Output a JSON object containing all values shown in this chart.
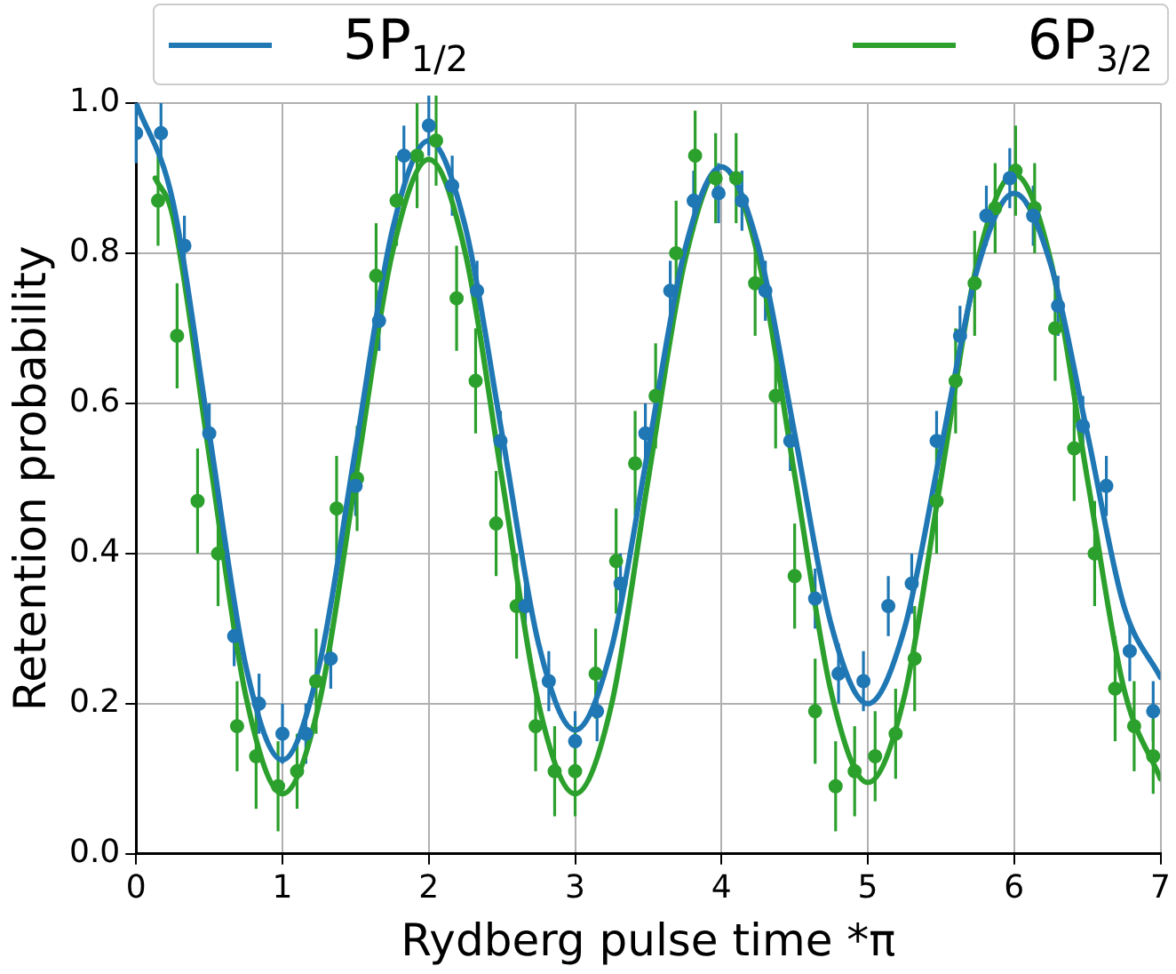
{
  "chart_data": {
    "type": "scatter",
    "xlabel": "Rydberg pulse time *π",
    "ylabel": "Retention probability",
    "xlim": [
      0,
      7
    ],
    "xticks": [
      0,
      1,
      2,
      3,
      4,
      5,
      6,
      7
    ],
    "ylim": [
      0,
      1
    ],
    "yticks": [
      {
        "value": 0,
        "label": "0.0"
      },
      0.2,
      0.4,
      0.6,
      0.8,
      {
        "value": 1,
        "label": "1.0"
      }
    ],
    "grid": true,
    "legend": "top",
    "series": [
      {
        "marker": "circle",
        "color": "#1f77b4",
        "x": [
          0,
          0.17,
          0.33,
          0.5,
          0.67,
          0.84,
          1.0,
          1.16,
          1.33,
          1.5,
          1.66,
          1.83,
          2.0,
          2.16,
          2.33,
          2.49,
          2.66,
          2.82,
          3.0,
          3.15,
          3.31,
          3.48,
          3.65,
          3.81,
          3.98,
          4.14,
          4.3,
          4.47,
          4.64,
          4.8,
          4.97,
          5.14,
          5.3,
          5.47,
          5.63,
          5.81,
          5.97,
          6.13,
          6.3,
          6.47,
          6.63,
          6.79,
          6.95
        ],
        "values": [
          0.96,
          0.96,
          0.81,
          0.56,
          0.29,
          0.2,
          0.16,
          0.16,
          0.26,
          0.49,
          0.71,
          0.93,
          0.97,
          0.89,
          0.75,
          0.55,
          0.33,
          0.23,
          0.15,
          0.19,
          0.36,
          0.56,
          0.75,
          0.87,
          0.88,
          0.87,
          0.75,
          0.55,
          0.34,
          0.24,
          0.23,
          0.33,
          0.36,
          0.55,
          0.69,
          0.85,
          0.9,
          0.85,
          0.73,
          0.57,
          0.49,
          0.27,
          0.19
        ],
        "errors": [
          0.04,
          0.04,
          0.04,
          0.04,
          0.04,
          0.04,
          0.04,
          0.04,
          0.04,
          0.04,
          0.04,
          0.04,
          0.04,
          0.04,
          0.04,
          0.04,
          0.04,
          0.04,
          0.04,
          0.04,
          0.04,
          0.04,
          0.04,
          0.04,
          0.04,
          0.04,
          0.04,
          0.04,
          0.04,
          0.04,
          0.04,
          0.04,
          0.04,
          0.04,
          0.04,
          0.04,
          0.04,
          0.04,
          0.04,
          0.04,
          0.04,
          0.04,
          0.04
        ]
      },
      {
        "marker": "circle",
        "color": "#2ca02c",
        "x": [
          0.15,
          0.28,
          0.42,
          0.56,
          0.69,
          0.82,
          0.97,
          1.1,
          1.23,
          1.37,
          1.51,
          1.64,
          1.78,
          1.92,
          2.05,
          2.19,
          2.32,
          2.46,
          2.6,
          2.73,
          2.86,
          3.0,
          3.14,
          3.28,
          3.41,
          3.55,
          3.69,
          3.82,
          3.96,
          4.1,
          4.23,
          4.37,
          4.5,
          4.64,
          4.78,
          4.91,
          5.05,
          5.19,
          5.32,
          5.47,
          5.6,
          5.73,
          5.87,
          6.01,
          6.14,
          6.28,
          6.41,
          6.55,
          6.69,
          6.82,
          6.95
        ],
        "values": [
          0.87,
          0.69,
          0.47,
          0.4,
          0.17,
          0.13,
          0.09,
          0.11,
          0.23,
          0.46,
          0.5,
          0.77,
          0.87,
          0.93,
          0.95,
          0.74,
          0.63,
          0.44,
          0.33,
          0.17,
          0.11,
          0.11,
          0.24,
          0.39,
          0.52,
          0.61,
          0.8,
          0.93,
          0.9,
          0.9,
          0.76,
          0.61,
          0.37,
          0.19,
          0.09,
          0.11,
          0.13,
          0.16,
          0.26,
          0.47,
          0.63,
          0.76,
          0.86,
          0.91,
          0.86,
          0.7,
          0.54,
          0.4,
          0.22,
          0.17,
          0.13
        ],
        "errors": [
          0.06,
          0.07,
          0.07,
          0.07,
          0.06,
          0.07,
          0.06,
          0.05,
          0.07,
          0.07,
          0.07,
          0.07,
          0.06,
          0.07,
          0.06,
          0.07,
          0.07,
          0.07,
          0.07,
          0.06,
          0.06,
          0.06,
          0.06,
          0.07,
          0.07,
          0.07,
          0.07,
          0.06,
          0.06,
          0.06,
          0.07,
          0.07,
          0.07,
          0.07,
          0.06,
          0.06,
          0.06,
          0.06,
          0.07,
          0.07,
          0.07,
          0.07,
          0.06,
          0.06,
          0.06,
          0.07,
          0.07,
          0.07,
          0.07,
          0.06,
          0.05
        ]
      },
      {
        "type": "line",
        "marker": "none",
        "name": "5P$_{1/2}$",
        "color": "#1f77b4",
        "x": [
          0,
          0.25,
          0.5,
          0.75,
          1,
          1.25,
          1.5,
          1.75,
          2,
          2.25,
          2.5,
          2.75,
          3,
          3.25,
          3.5,
          3.75,
          4,
          4.25,
          4.5,
          4.75,
          5,
          5.25,
          5.5,
          5.75,
          6,
          6.25,
          6.5,
          6.75,
          7
        ],
        "values": [
          1.0,
          0.87,
          0.56,
          0.25,
          0.125,
          0.25,
          0.54,
          0.83,
          0.95,
          0.835,
          0.56,
          0.28,
          0.165,
          0.275,
          0.54,
          0.805,
          0.915,
          0.81,
          0.56,
          0.305,
          0.2,
          0.3,
          0.54,
          0.78,
          0.88,
          0.785,
          0.56,
          0.33,
          0.235
        ]
      },
      {
        "type": "line",
        "marker": "none",
        "name": "6P$_{3/2}$",
        "color": "#2ca02c",
        "x": [
          0.13,
          0.25,
          0.5,
          0.75,
          1,
          1.25,
          1.5,
          1.75,
          2,
          2.25,
          2.5,
          2.75,
          3,
          3.25,
          3.5,
          3.75,
          4,
          4.25,
          4.5,
          4.75,
          5,
          5.25,
          5.5,
          5.75,
          6,
          6.25,
          6.5,
          6.75,
          7
        ],
        "values": [
          0.9,
          0.85,
          0.53,
          0.21,
          0.08,
          0.2,
          0.5,
          0.8,
          0.925,
          0.8,
          0.5,
          0.2,
          0.08,
          0.2,
          0.5,
          0.79,
          0.915,
          0.795,
          0.505,
          0.215,
          0.095,
          0.21,
          0.5,
          0.79,
          0.905,
          0.79,
          0.5,
          0.22,
          0.1
        ]
      }
    ]
  }
}
